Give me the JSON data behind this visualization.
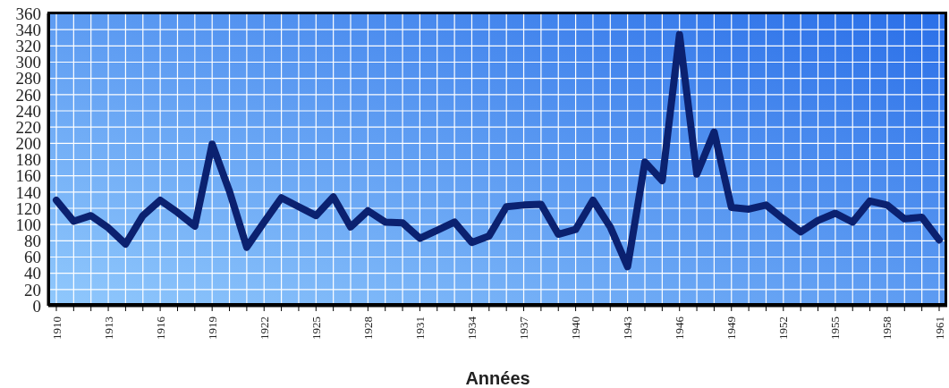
{
  "chart_data": {
    "type": "line",
    "xlabel": "Années",
    "categories": [
      "1910",
      null,
      null,
      "1913",
      null,
      null,
      "1916",
      null,
      null,
      "1919",
      null,
      null,
      "1922",
      null,
      null,
      "1925",
      null,
      null,
      "1928",
      null,
      null,
      "1931",
      null,
      null,
      "1934",
      null,
      null,
      "1937",
      null,
      null,
      "1940",
      null,
      null,
      "1943",
      null,
      null,
      "1946",
      null,
      null,
      "1949",
      null,
      null,
      "1952",
      null,
      null,
      "1955",
      null,
      null,
      "1958",
      null,
      null,
      "1961"
    ],
    "series": [
      {
        "color": "#0b2170",
        "values": [
          130,
          104,
          111,
          96,
          76,
          111,
          130,
          115,
          98,
          199,
          141,
          72,
          103,
          133,
          122,
          111,
          134,
          97,
          117,
          103,
          102,
          83,
          93,
          103,
          78,
          86,
          122,
          124,
          125,
          88,
          94,
          130,
          97,
          48,
          177,
          154,
          334,
          162,
          214,
          121,
          119,
          124,
          107,
          91,
          105,
          114,
          103,
          129,
          124,
          107,
          109,
          81
        ]
      }
    ],
    "ylim": [
      0,
      360
    ],
    "yticks": [
      0,
      20,
      40,
      60,
      80,
      100,
      120,
      140,
      160,
      180,
      200,
      220,
      240,
      260,
      280,
      300,
      320,
      340,
      360
    ],
    "grid": true
  }
}
